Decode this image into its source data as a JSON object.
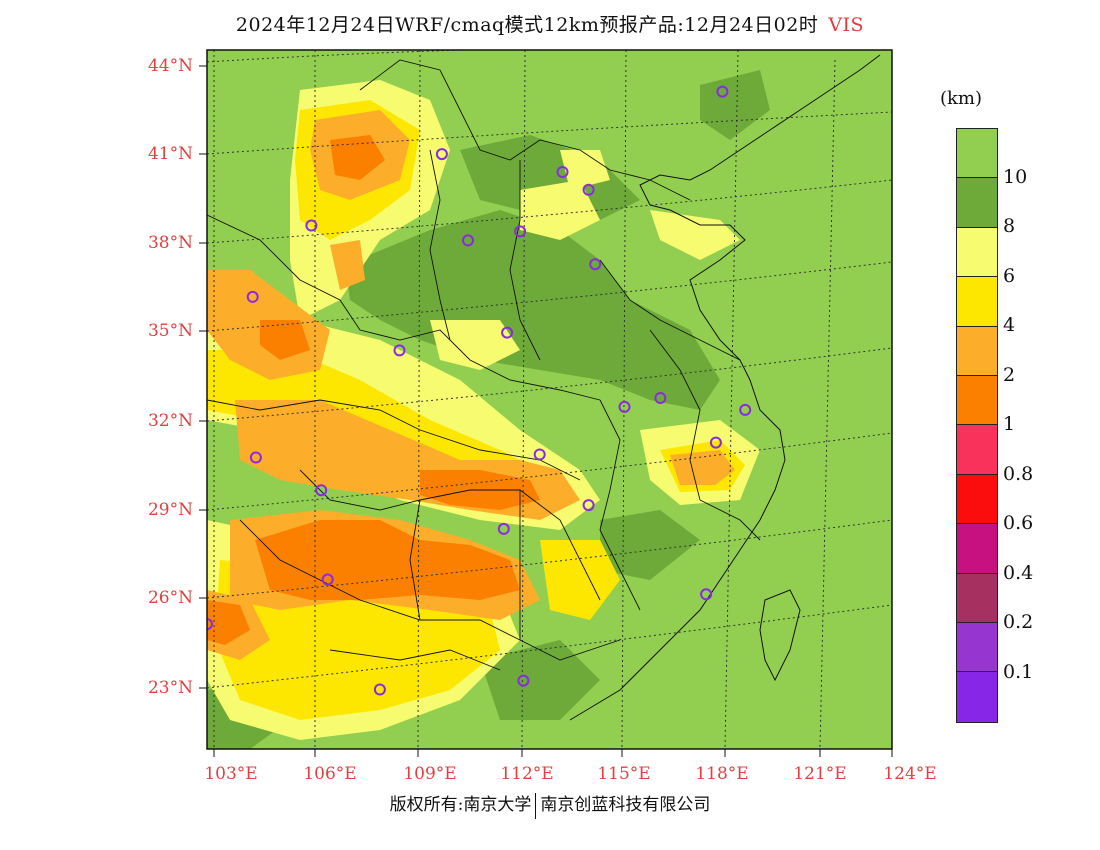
{
  "title": {
    "text": "2024年12月24日WRF/cmaq模式12km预报产品:12月24日02时",
    "variable": "VIS"
  },
  "map": {
    "lat_labels": [
      "44°N",
      "41°N",
      "38°N",
      "35°N",
      "32°N",
      "29°N",
      "26°N",
      "23°N"
    ],
    "lon_labels": [
      "103°E",
      "106°E",
      "109°E",
      "112°E",
      "115°E",
      "118°E",
      "121°E",
      "124°E"
    ],
    "lon_range": [
      103,
      124
    ],
    "lat_range": [
      20.8,
      44.3
    ],
    "background_color": "#92cf50",
    "station_marker_color": "#8a2be2",
    "stations": [
      [
        118.8,
        42.9
      ],
      [
        110.2,
        40.8
      ],
      [
        113.9,
        40.2
      ],
      [
        114.7,
        39.6
      ],
      [
        106.2,
        38.4
      ],
      [
        111.0,
        37.9
      ],
      [
        112.6,
        38.2
      ],
      [
        114.9,
        37.1
      ],
      [
        104.4,
        36.0
      ],
      [
        112.2,
        34.8
      ],
      [
        108.9,
        34.2
      ],
      [
        115.8,
        32.3
      ],
      [
        116.9,
        32.6
      ],
      [
        119.5,
        32.2
      ],
      [
        118.6,
        31.1
      ],
      [
        104.5,
        30.6
      ],
      [
        113.2,
        30.7
      ],
      [
        106.5,
        29.5
      ],
      [
        114.7,
        29.0
      ],
      [
        112.1,
        28.2
      ],
      [
        106.7,
        26.5
      ],
      [
        118.3,
        26.0
      ],
      [
        103.0,
        25.0
      ],
      [
        108.3,
        22.8
      ],
      [
        112.7,
        23.1
      ]
    ]
  },
  "legend": {
    "unit": "(km)",
    "swatches": [
      "#92cf50",
      "#6daa39",
      "#f6fb70",
      "#fde700",
      "#fcad2a",
      "#fb8000",
      "#f8325a",
      "#fb0d0e",
      "#c81180",
      "#a6305f",
      "#9635cf",
      "#8726e6"
    ],
    "labels": [
      "10",
      "8",
      "6",
      "4",
      "2",
      "1",
      "0.8",
      "0.6",
      "0.4",
      "0.2",
      "0.1"
    ]
  },
  "credit": {
    "left": "版权所有:南京大学",
    "right": "南京创蓝科技有限公司"
  }
}
